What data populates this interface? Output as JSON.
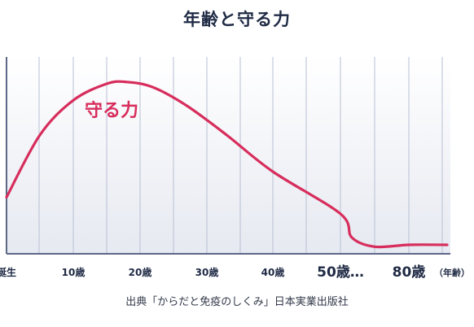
{
  "title": "年齢と守る力",
  "source": "出典「からだと免疫のしくみ」日本実業出版社",
  "chart_data": {
    "type": "line",
    "title": "年齢と守る力",
    "xlabel": "",
    "ylabel": "",
    "ticks": [
      {
        "label": "誕生",
        "x": 0,
        "size": "small"
      },
      {
        "label": "10歳",
        "x": 10,
        "size": "small"
      },
      {
        "label": "20歳",
        "x": 20,
        "size": "small"
      },
      {
        "label": "30歳",
        "x": 30,
        "size": "small"
      },
      {
        "label": "40歳",
        "x": 40,
        "size": "small"
      },
      {
        "label": "50歳…",
        "x": 50,
        "size": "large"
      },
      {
        "label": "80歳",
        "x": 80,
        "size": "large"
      }
    ],
    "x_unit_label": "（年齢）",
    "series": [
      {
        "name": "守る力",
        "color": "#d72d5c",
        "points": [
          {
            "x": 0,
            "y": 0.3
          },
          {
            "x": 5,
            "y": 0.64
          },
          {
            "x": 10,
            "y": 0.83
          },
          {
            "x": 15,
            "y": 0.92
          },
          {
            "x": 18,
            "y": 0.93
          },
          {
            "x": 22,
            "y": 0.9
          },
          {
            "x": 27,
            "y": 0.8
          },
          {
            "x": 33,
            "y": 0.64
          },
          {
            "x": 40,
            "y": 0.44
          },
          {
            "x": 50,
            "y": 0.21
          },
          {
            "x": 55,
            "y": 0.08
          },
          {
            "x": 65,
            "y": 0.03
          },
          {
            "x": 80,
            "y": 0.04
          }
        ]
      }
    ],
    "grid": true,
    "colors": {
      "grid": "#b8c0d3",
      "axis": "#5d6887",
      "background_band": "#e8ebf2"
    }
  }
}
